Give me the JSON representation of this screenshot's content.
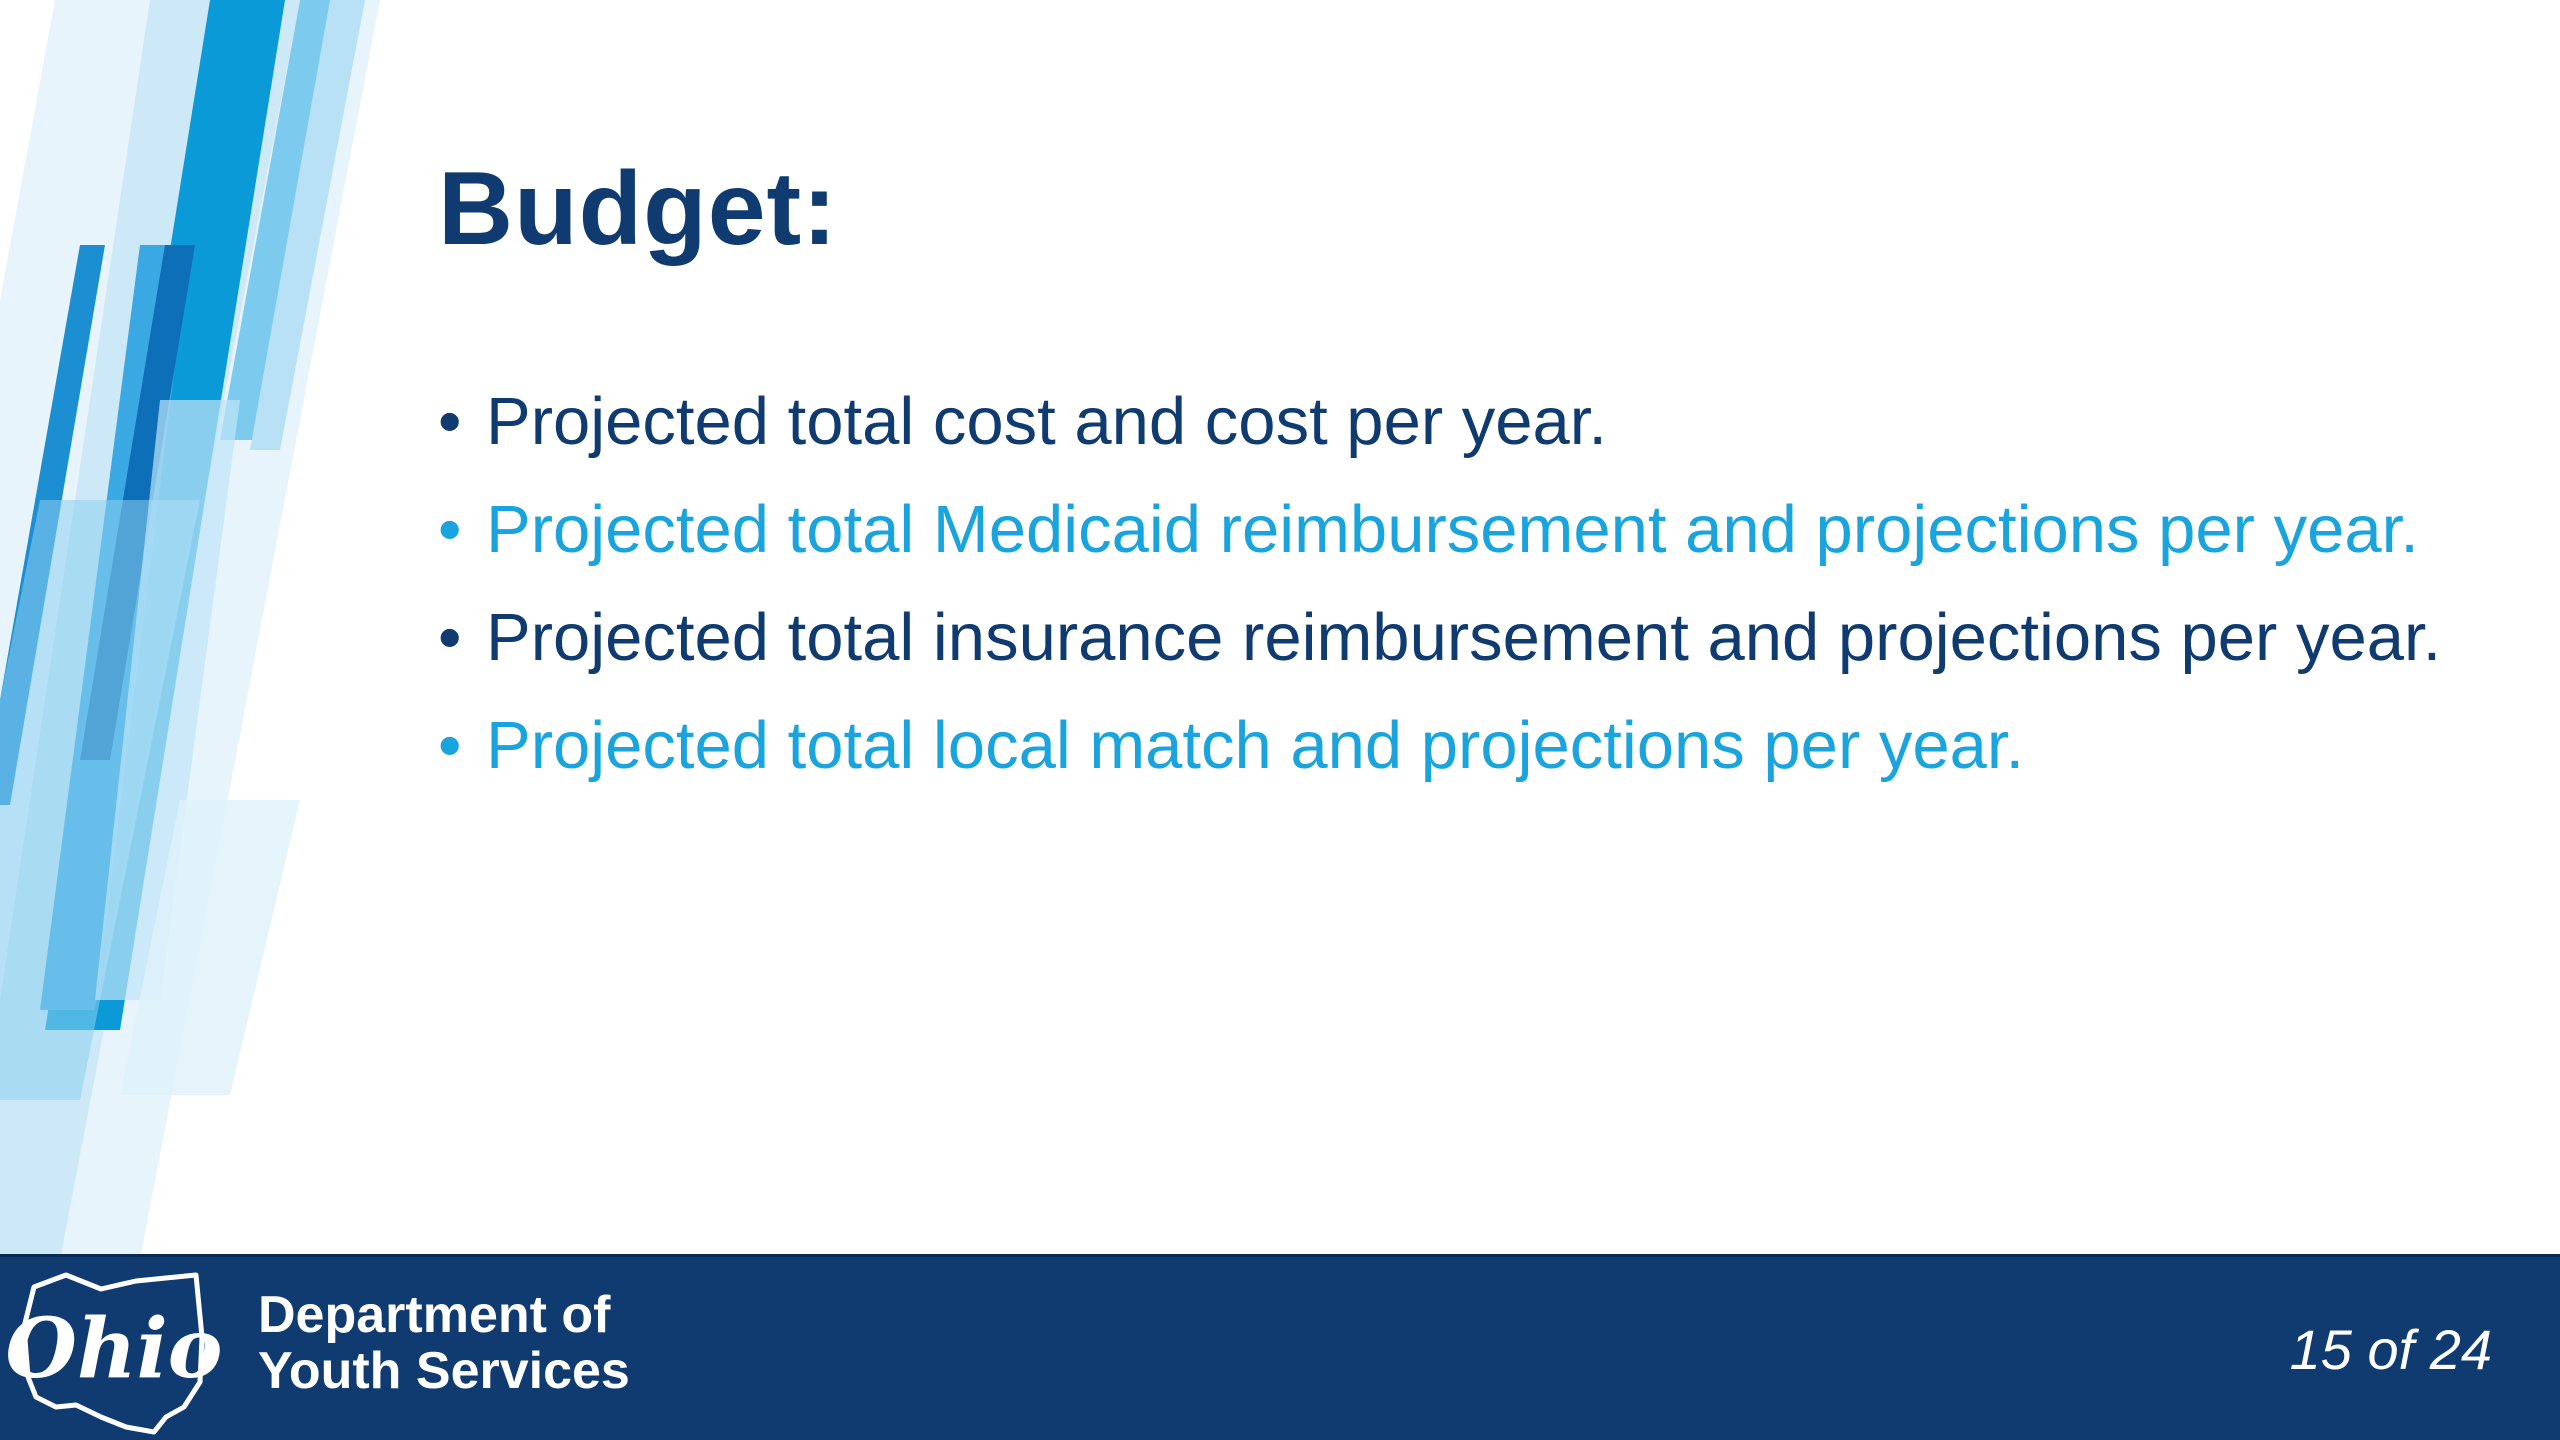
{
  "slide": {
    "title": "Budget:",
    "bullets": [
      {
        "text": "Projected total cost and cost per year.",
        "color": "#0f3b70"
      },
      {
        "text": "Projected total Medicaid reimbursement and projections per year.",
        "color": "#1aa4de"
      },
      {
        "text": "Projected total insurance reimbursement and projections per year.",
        "color": "#0f3b70"
      },
      {
        "text": "Projected total local match and projections per year.",
        "color": "#1aa4de"
      }
    ],
    "bullet_glyph": "•"
  },
  "footer": {
    "logo_text": "Ohio",
    "department_line1": "Department of",
    "department_line2": "Youth Services",
    "page_indicator": "15 of 24"
  },
  "colors": {
    "primary_navy": "#0f3b70",
    "accent_blue": "#1aa4de",
    "footer_bg": "#0f3b70"
  }
}
